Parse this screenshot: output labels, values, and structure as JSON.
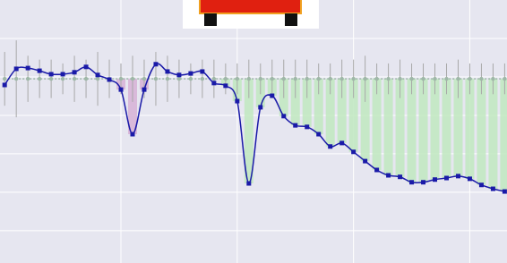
{
  "chart_data": {
    "type": "line",
    "x": [
      0,
      1,
      2,
      3,
      4,
      5,
      6,
      7,
      8,
      9,
      10,
      11,
      12,
      13,
      14,
      15,
      16,
      17,
      18,
      19,
      20,
      21,
      22,
      23,
      24,
      25,
      26,
      27,
      28,
      29,
      30,
      31,
      32,
      33,
      34,
      35,
      36,
      37,
      38,
      39,
      40,
      41,
      42,
      43
    ],
    "series": [
      {
        "color": "#1a1aa8",
        "values": [
          3.79,
          4.21,
          4.23,
          4.16,
          4.07,
          4.07,
          4.12,
          4.26,
          4.05,
          3.93,
          3.67,
          2.51,
          3.67,
          4.33,
          4.14,
          4.05,
          4.09,
          4.14,
          3.84,
          3.77,
          3.37,
          1.23,
          3.21,
          3.51,
          2.98,
          2.74,
          2.7,
          2.51,
          2.19,
          2.28,
          2.05,
          1.81,
          1.58,
          1.44,
          1.4,
          1.26,
          1.26,
          1.33,
          1.37,
          1.42,
          1.35,
          1.19,
          1.09,
          1.02
        ]
      },
      {
        "color": "#9fb8a8",
        "values": [
          3.95,
          3.95,
          3.95,
          3.95,
          3.95,
          3.95,
          3.95,
          3.95,
          3.95,
          3.95,
          3.95,
          3.95,
          3.95,
          3.95,
          3.95,
          3.95,
          3.95,
          3.95,
          3.95,
          3.95,
          3.95,
          3.95,
          3.95,
          3.95,
          3.95,
          3.95,
          3.95,
          3.95,
          3.95,
          3.95,
          3.95,
          3.95,
          3.95,
          3.95,
          3.95,
          3.95,
          3.95,
          3.95,
          3.95,
          3.95,
          3.95,
          3.95,
          3.95,
          3.95
        ],
        "errors": [
          0.7,
          1.0,
          0.6,
          0.5,
          0.5,
          0.4,
          0.6,
          0.5,
          0.7,
          0.5,
          0.4,
          0.6,
          0.5,
          0.7,
          0.6,
          0.5,
          0.4,
          0.5,
          0.5,
          0.4,
          0.4,
          0.5,
          0.4,
          0.5,
          0.5,
          0.5,
          0.5,
          0.4,
          0.4,
          0.5,
          0.5,
          0.6,
          0.4,
          0.4,
          0.5,
          0.4,
          0.4,
          0.4,
          0.4,
          0.5,
          0.4,
          0.4,
          0.4,
          0.4
        ]
      }
    ],
    "highlights": [
      {
        "color": "#d6b0d6",
        "from": 10,
        "to": 12
      },
      {
        "color": "#bfe8c0",
        "from": 19,
        "to": 43
      }
    ],
    "xlim": [
      -0.4,
      43.2
    ],
    "xticks": [
      10,
      20,
      30,
      40
    ],
    "ylim": [
      -0.84,
      6.0
    ],
    "yticks": [
      0,
      1,
      2,
      3,
      4,
      5
    ],
    "grid": true
  }
}
